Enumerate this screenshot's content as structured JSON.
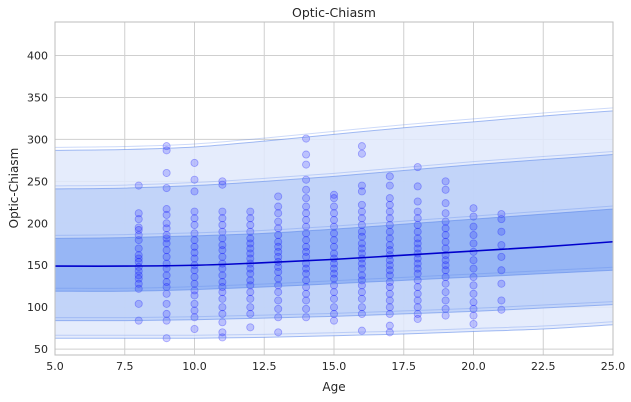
{
  "chart_data": {
    "type": "scatter",
    "title": "Optic-Chiasm",
    "xlabel": "Age",
    "ylabel": "Optic-Chiasm",
    "xlim": [
      5.0,
      25.0
    ],
    "ylim": [
      43,
      440
    ],
    "grid": true,
    "x_ticks": [
      "5.0",
      "7.5",
      "10.0",
      "12.5",
      "15.0",
      "17.5",
      "20.0",
      "22.5",
      "25.0"
    ],
    "y_ticks": [
      "50",
      "100",
      "150",
      "200",
      "250",
      "300",
      "350",
      "400"
    ],
    "colors": {
      "points": "#0000ff",
      "median_line": "#0000cc",
      "band_inner": "#8fb0f5",
      "band_mid": "#bcd0f8",
      "band_outer": "#e0e9fc"
    },
    "centile_curves": {
      "x": [
        5,
        7.5,
        10,
        12.5,
        15,
        17.5,
        20,
        22.5,
        25
      ],
      "median": [
        149,
        149,
        150,
        153,
        157,
        162,
        167,
        172,
        178
      ],
      "p25": [
        119,
        119,
        121,
        124,
        128,
        132,
        136,
        140,
        144
      ],
      "p75": [
        182,
        183,
        185,
        188,
        193,
        199,
        205,
        211,
        217
      ],
      "p05": [
        84,
        84,
        85,
        87,
        89,
        92,
        95,
        99,
        103
      ],
      "p95": [
        241,
        242,
        245,
        250,
        256,
        263,
        270,
        276,
        282
      ],
      "p01": [
        63,
        63,
        63,
        64,
        66,
        68,
        71,
        74,
        79
      ],
      "p99": [
        287,
        288,
        291,
        298,
        306,
        314,
        321,
        328,
        334
      ]
    },
    "points": [
      {
        "x": 8,
        "y": [
          245,
          212,
          205,
          195,
          192,
          186,
          180,
          170,
          162,
          158,
          154,
          148,
          143,
          138,
          134,
          128,
          122,
          104,
          84
        ]
      },
      {
        "x": 9,
        "y": [
          292,
          287,
          260,
          242,
          217,
          210,
          200,
          194,
          186,
          182,
          176,
          168,
          160,
          152,
          146,
          138,
          130,
          124,
          116,
          104,
          92,
          84,
          63
        ]
      },
      {
        "x": 10,
        "y": [
          272,
          252,
          238,
          214,
          206,
          198,
          188,
          180,
          172,
          165,
          158,
          150,
          144,
          136,
          128,
          120,
          114,
          104,
          96,
          88,
          74
        ]
      },
      {
        "x": 11,
        "y": [
          250,
          246,
          214,
          206,
          198,
          190,
          182,
          174,
          168,
          160,
          152,
          146,
          138,
          130,
          124,
          118,
          110,
          100,
          92,
          82,
          70,
          64
        ]
      },
      {
        "x": 12,
        "y": [
          214,
          206,
          198,
          190,
          182,
          176,
          170,
          164,
          158,
          152,
          146,
          140,
          132,
          126,
          118,
          110,
          100,
          92,
          76
        ]
      },
      {
        "x": 13,
        "y": [
          232,
          220,
          212,
          202,
          194,
          186,
          178,
          172,
          166,
          160,
          154,
          148,
          142,
          134,
          126,
          118,
          108,
          98,
          88,
          70
        ]
      },
      {
        "x": 14,
        "y": [
          301,
          282,
          270,
          252,
          240,
          230,
          220,
          212,
          204,
          196,
          188,
          180,
          172,
          166,
          160,
          152,
          146,
          140,
          132,
          124,
          116,
          108,
          98,
          88
        ]
      },
      {
        "x": 15,
        "y": [
          234,
          230,
          220,
          212,
          204,
          196,
          188,
          180,
          172,
          164,
          158,
          152,
          146,
          140,
          134,
          126,
          118,
          110,
          100,
          92,
          84
        ]
      },
      {
        "x": 16,
        "y": [
          292,
          283,
          245,
          238,
          222,
          214,
          206,
          198,
          190,
          184,
          176,
          170,
          164,
          158,
          152,
          146,
          138,
          132,
          126,
          118,
          110,
          100,
          92,
          72
        ]
      },
      {
        "x": 17,
        "y": [
          256,
          245,
          230,
          222,
          214,
          206,
          198,
          190,
          182,
          174,
          168,
          162,
          156,
          150,
          144,
          138,
          130,
          124,
          116,
          108,
          100,
          92,
          78,
          70
        ]
      },
      {
        "x": 18,
        "y": [
          267,
          244,
          226,
          214,
          206,
          198,
          190,
          182,
          176,
          170,
          164,
          158,
          152,
          146,
          140,
          132,
          124,
          116,
          108,
          100,
          92,
          86
        ]
      },
      {
        "x": 19,
        "y": [
          250,
          240,
          224,
          212,
          202,
          194,
          186,
          178,
          170,
          162,
          156,
          150,
          144,
          136,
          128,
          118,
          108,
          98,
          90
        ]
      },
      {
        "x": 20,
        "y": [
          218,
          208,
          196,
          186,
          176,
          166,
          156,
          146,
          136,
          126,
          116,
          106,
          98,
          90,
          80
        ]
      },
      {
        "x": 21,
        "y": [
          211,
          205,
          190,
          174,
          160,
          144,
          128,
          108,
          97
        ]
      }
    ]
  }
}
